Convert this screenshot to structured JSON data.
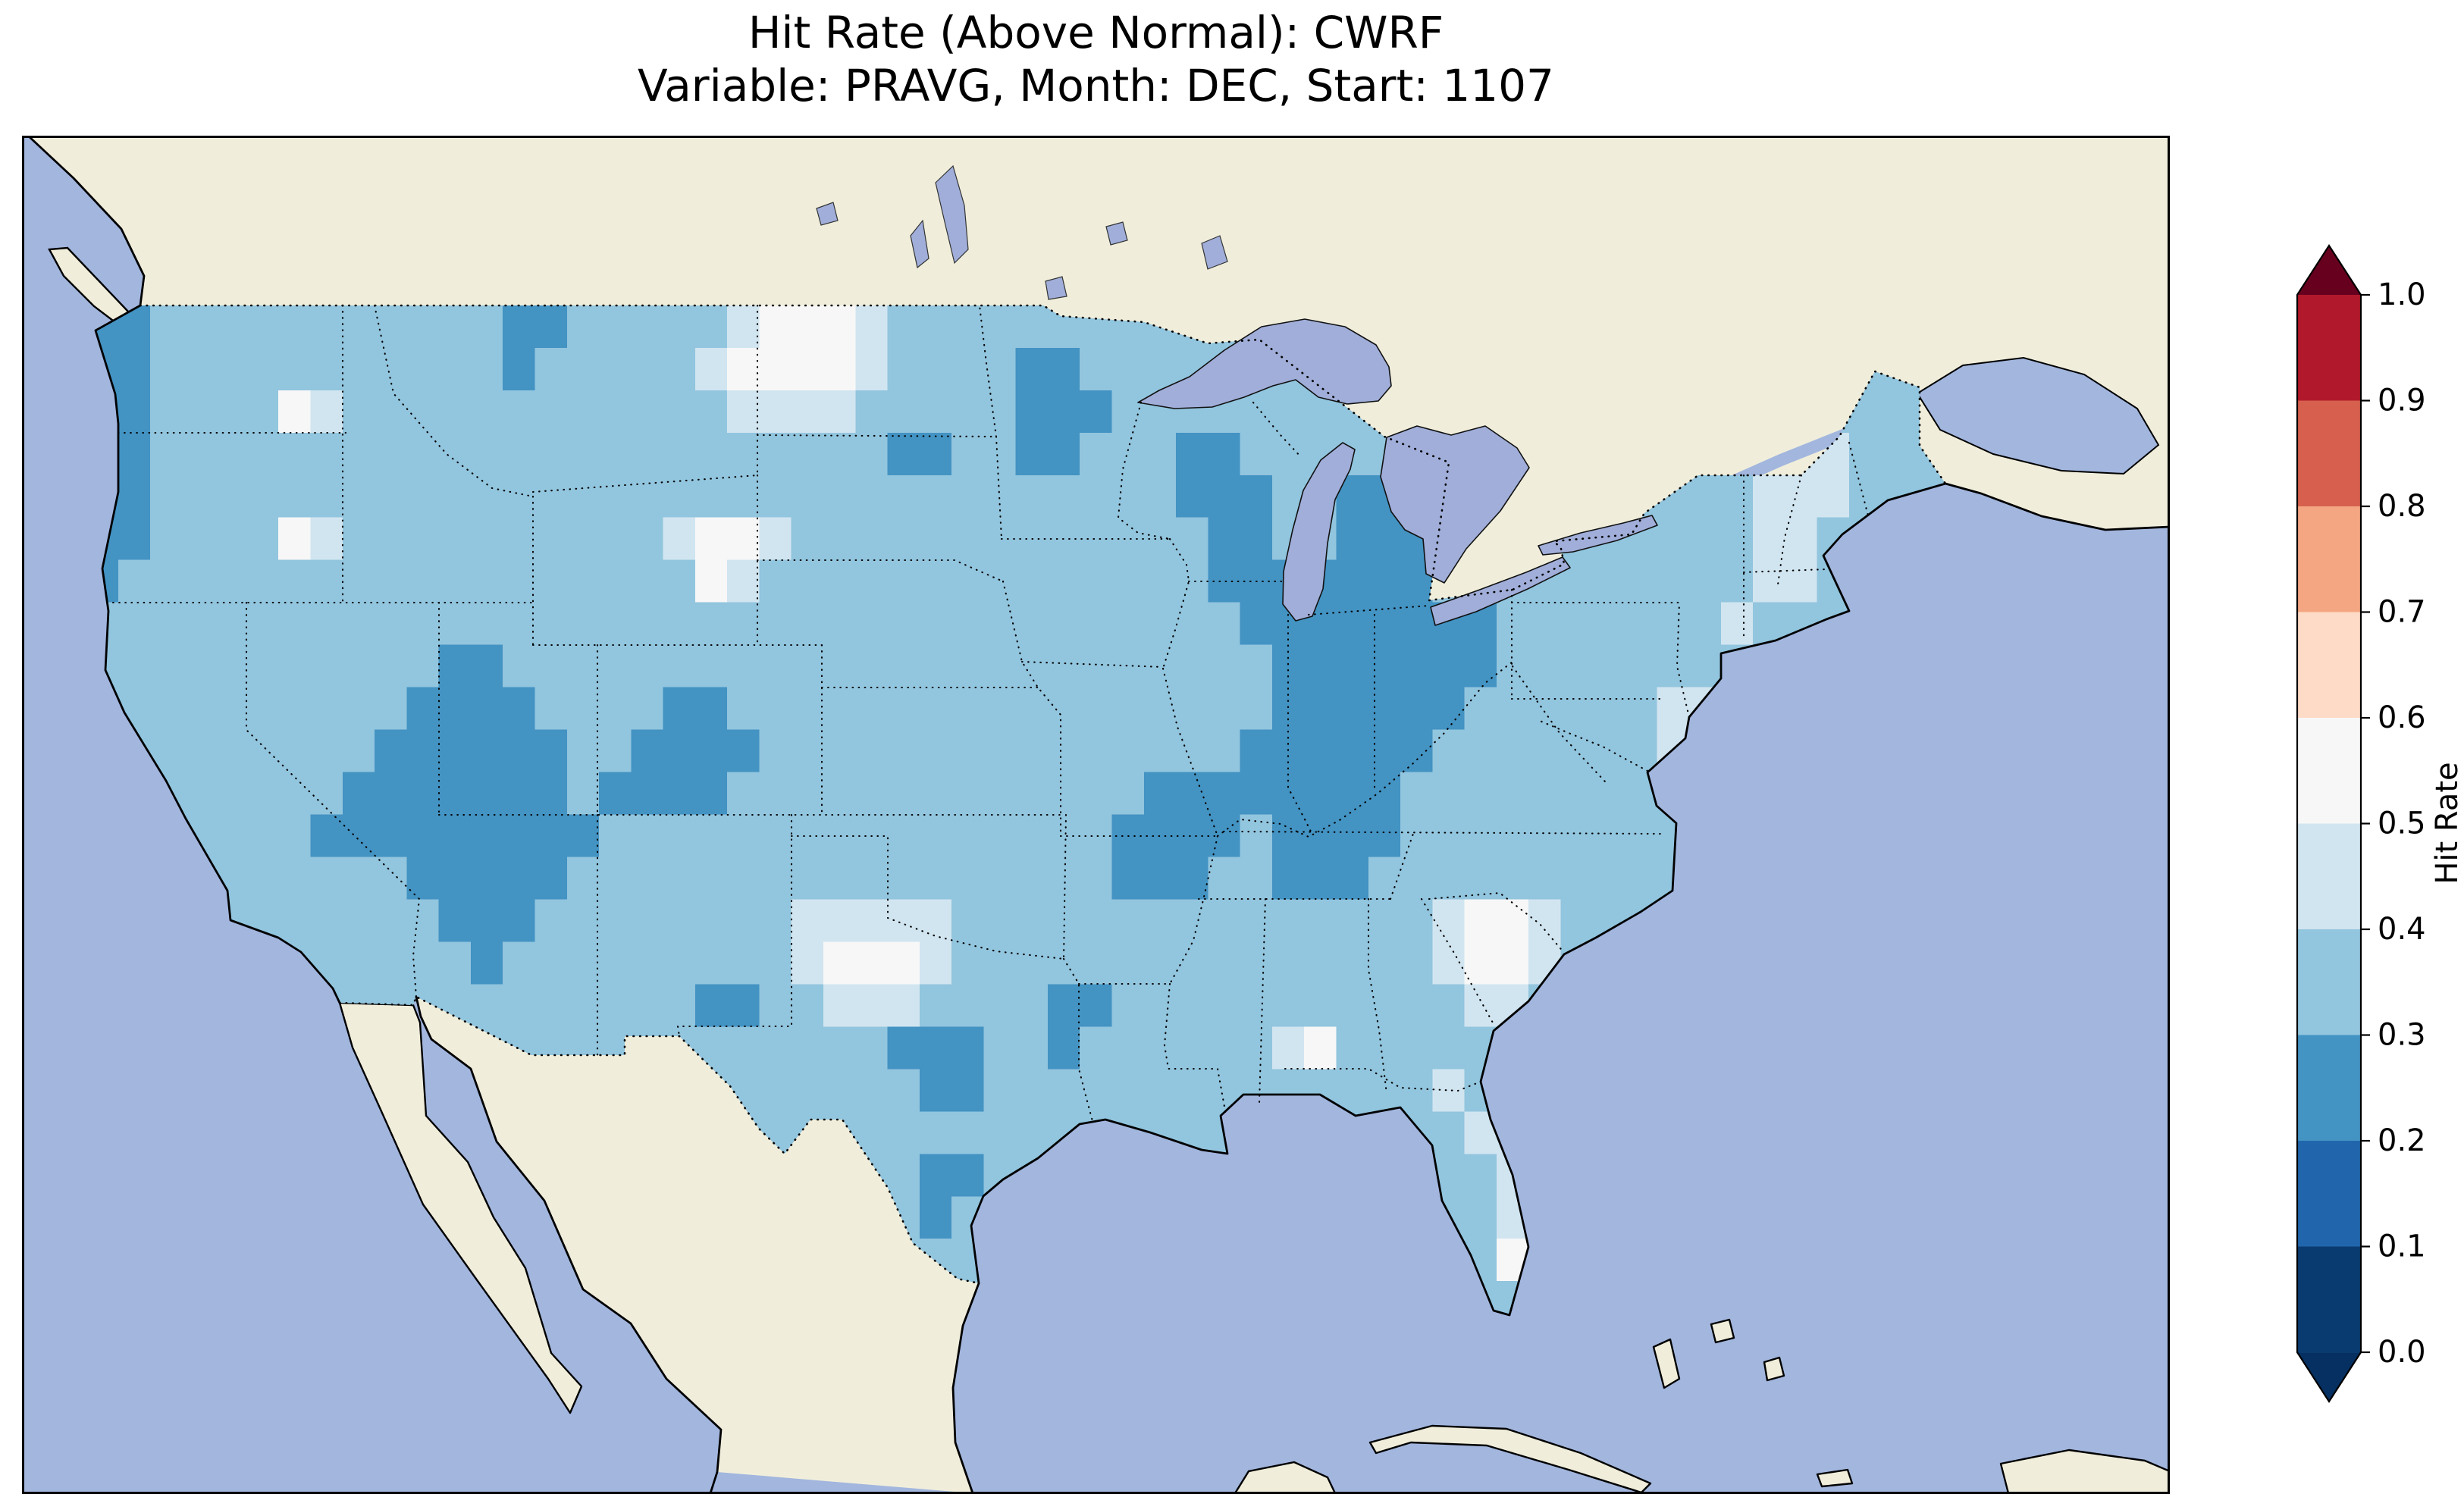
{
  "title": {
    "line1": "Hit Rate (Above Normal): CWRF",
    "line2": "Variable: PRAVG, Month: DEC, Start: 1107"
  },
  "colorbar": {
    "label": "Hit Rate",
    "ticks": [
      "1.0",
      "0.9",
      "0.8",
      "0.7",
      "0.6",
      "0.5",
      "0.4",
      "0.3",
      "0.2",
      "0.1",
      "0.0"
    ],
    "under_color": "#053061",
    "over_color": "#67001f",
    "bin_colors": [
      "#0a3b70",
      "#2166ac",
      "#4393c3",
      "#92c5de",
      "#d1e5f0",
      "#f7f7f7",
      "#fddbc7",
      "#f4a582",
      "#d6604d",
      "#b2182b"
    ]
  },
  "map_colors": {
    "ocean": "#a2b6de",
    "lake": "#a0aed9",
    "land": "#f0eedb",
    "coast": "#000000"
  },
  "chart_data": {
    "type": "heatmap",
    "title": "Hit Rate (Above Normal): CWRF",
    "subtitle": "Variable: PRAVG, Month: DEC, Start: 1107",
    "model": "CWRF",
    "variable": "PRAVG",
    "month": "DEC",
    "start": "1107",
    "colorbar_label": "Hit Rate",
    "value_range": [
      0.0,
      1.0
    ],
    "colorbar_extend": "both",
    "legend_position": "right",
    "grid": {
      "encoding": "Each character d is the hit-rate bin [d/10,(d+1)/10) for a 1-degree cell; rows run north (lat 48-49) to south (lat 24-25); columns run west (lon -125) to east (lon -67); values drawn only inside the CONUS boundary.",
      "lon_min": -125,
      "lon_max": -67,
      "lat_min": 25,
      "lat_max": 49,
      "cell_deg": 1,
      "rows": [
        "2233333333333223333345554333333333333333333333333333333333",
        "2233333333333233333455554333322333333333333333333333333333",
        "2233335433333333333344443333322233333333333333333333333333",
        "2233333333333333333333333223322333223333333333333333344333",
        "2233333333333333333333333333333333222332223333333333444333",
        "2233335433333333334554333333333333322332222333333333443333",
        "2333333333333333333543333333333333322222223333333333443333",
        "3333333333333333333333333333333333332222222233333334333333",
        "3333333333322333333333333333333333333222222233333333333333",
        "3333333333222233332233333333333333333222222333333443333333",
        "3333333332222223322223333333333333332222223333333433333333",
        "3333333322222223222233333333333332222222233333333333333333",
        "3333333222222222333333333333333322223222233333333333333333",
        "3333333333222223333333333333333322233222333333333333333333",
        "3333333333322233333333444443333333333333334554333333333333",
        "3333333333332333333333455543333333333333334554333333333333",
        "3333333333333333333223344433332233333333333443333333333333",
        "3333333333333333333333333222332333333453333333333333333333",
        "3333333333333333333333333322333333333333334333333333333333",
        "3333333333333333333333333333333333333333333443333333333333",
        "3333333333333333333333333322333333333333333343333333333333",
        "3333333333333333333333333323333333333333333344333333333333",
        "3333333333333333333333333333333333333333333354333333333333",
        "3333333333333333333333333333333333333333333334333333333333"
      ]
    }
  }
}
